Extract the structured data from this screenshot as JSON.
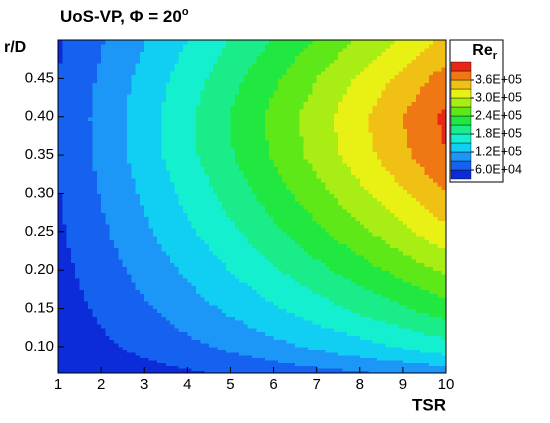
{
  "chart_data": {
    "type": "contour",
    "title": "UoS-VP, Φ = 20",
    "title_superscript": "o",
    "x_label": "TSR",
    "y_label": "r/D",
    "colorbar_title": "Re",
    "colorbar_title_subscript": "r",
    "x": [
      1,
      2,
      3,
      4,
      5,
      6,
      7,
      8,
      9,
      10
    ],
    "y": [
      0.066,
      0.1,
      0.15,
      0.2,
      0.25,
      0.3,
      0.35,
      0.4,
      0.45,
      0.5
    ],
    "z": [
      [
        32600,
        40200,
        47800,
        55400,
        63000,
        70600,
        78200,
        85800,
        93400,
        101000
      ],
      [
        39250,
        53500,
        67750,
        82000,
        96250,
        110500,
        124750,
        139000,
        153250,
        167500
      ],
      [
        45140,
        65280,
        85420,
        105560,
        125700,
        145840,
        165980,
        186120,
        206260,
        226400
      ],
      [
        50080,
        75160,
        100240,
        125320,
        150400,
        175480,
        200560,
        225640,
        250720,
        275800
      ],
      [
        54640,
        84280,
        113920,
        143560,
        173200,
        202840,
        232480,
        262120,
        291760,
        321400
      ],
      [
        58440,
        91880,
        125320,
        158760,
        192200,
        225640,
        259080,
        292520,
        325960,
        359400
      ],
      [
        61480,
        97960,
        134440,
        170920,
        207400,
        243880,
        280360,
        316840,
        353320,
        389800
      ],
      [
        62240,
        99480,
        136720,
        173960,
        211200,
        248440,
        285680,
        322920,
        360160,
        397400
      ],
      [
        59960,
        94920,
        129880,
        164840,
        199800,
        234760,
        269720,
        304680,
        339640,
        374600
      ],
      [
        56160,
        87320,
        118480,
        149640,
        180800,
        211960,
        243120,
        274280,
        305440,
        336600
      ]
    ],
    "levels": [
      60000,
      90000,
      120000,
      150000,
      180000,
      210000,
      240000,
      270000,
      300000,
      330000,
      360000,
      390000
    ],
    "colors": [
      "#0b2cd8",
      "#1462ef",
      "#1c96f7",
      "#10cff2",
      "#14f0cf",
      "#1aec8a",
      "#20e840",
      "#5ee818",
      "#a8ee14",
      "#e8f014",
      "#f0c014",
      "#f07814",
      "#e82814"
    ],
    "colorbar_ticks": [
      {
        "value": 60000,
        "label": "6.0E+04"
      },
      {
        "value": 120000,
        "label": "1.2E+05"
      },
      {
        "value": 180000,
        "label": "1.8E+05"
      },
      {
        "value": 240000,
        "label": "2.4E+05"
      },
      {
        "value": 300000,
        "label": "3.0E+05"
      },
      {
        "value": 360000,
        "label": "3.6E+05"
      }
    ],
    "xlim": [
      1,
      10
    ],
    "ylim": [
      0.066,
      0.5
    ],
    "xticks": [
      1,
      2,
      3,
      4,
      5,
      6,
      7,
      8,
      9,
      10
    ],
    "yticks": [
      {
        "value": 0.1,
        "label": "0.10"
      },
      {
        "value": 0.15,
        "label": "0.15"
      },
      {
        "value": 0.2,
        "label": "0.20"
      },
      {
        "value": 0.25,
        "label": "0.25"
      },
      {
        "value": 0.3,
        "label": "0.30"
      },
      {
        "value": 0.35,
        "label": "0.35"
      },
      {
        "value": 0.4,
        "label": "0.40"
      },
      {
        "value": 0.45,
        "label": "0.45"
      }
    ]
  }
}
